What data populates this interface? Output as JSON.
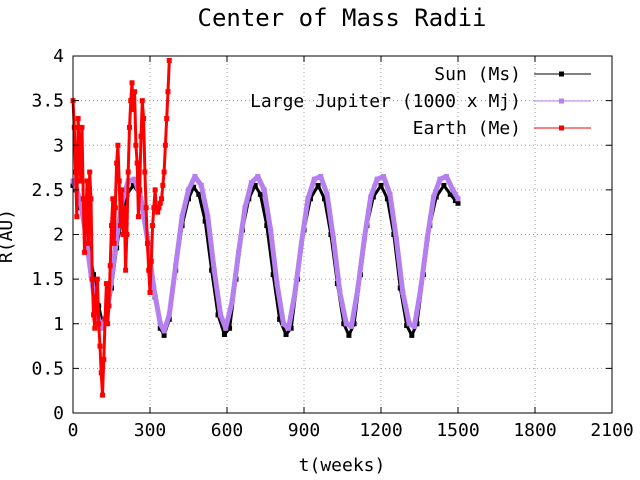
{
  "chart_data": {
    "type": "scatter",
    "title": "Center of Mass Radii",
    "xlabel": "t(weeks)",
    "ylabel": "R(AU)",
    "xlim": [
      0,
      2100
    ],
    "ylim": [
      0,
      4
    ],
    "xticks": [
      0,
      300,
      600,
      900,
      1200,
      1500,
      1800,
      2100
    ],
    "yticks": [
      "0",
      "0.5",
      "1",
      "1.5",
      "2",
      "2.5",
      "3",
      "3.5",
      "4"
    ],
    "grid": true,
    "legend_position": "top-right",
    "series": [
      {
        "name": "Sun (Ms)",
        "color": "#000000",
        "marker": "square",
        "points": [
          [
            0,
            2.55
          ],
          [
            10,
            2.5
          ],
          [
            20,
            2.4
          ],
          [
            30,
            2.3
          ],
          [
            45,
            2.15
          ],
          [
            60,
            1.9
          ],
          [
            80,
            1.55
          ],
          [
            100,
            1.2
          ],
          [
            115,
            1.0
          ],
          [
            130,
            1.05
          ],
          [
            150,
            1.4
          ],
          [
            170,
            1.85
          ],
          [
            190,
            2.2
          ],
          [
            210,
            2.45
          ],
          [
            235,
            2.55
          ],
          [
            260,
            2.45
          ],
          [
            280,
            2.2
          ],
          [
            300,
            1.8
          ],
          [
            320,
            1.3
          ],
          [
            340,
            0.95
          ],
          [
            355,
            0.87
          ],
          [
            375,
            1.05
          ],
          [
            400,
            1.6
          ],
          [
            425,
            2.1
          ],
          [
            450,
            2.4
          ],
          [
            470,
            2.53
          ],
          [
            490,
            2.45
          ],
          [
            515,
            2.15
          ],
          [
            540,
            1.6
          ],
          [
            565,
            1.1
          ],
          [
            590,
            0.88
          ],
          [
            610,
            0.95
          ],
          [
            635,
            1.5
          ],
          [
            660,
            2.05
          ],
          [
            685,
            2.4
          ],
          [
            710,
            2.55
          ],
          [
            730,
            2.45
          ],
          [
            755,
            2.1
          ],
          [
            780,
            1.55
          ],
          [
            805,
            1.05
          ],
          [
            830,
            0.88
          ],
          [
            850,
            0.95
          ],
          [
            875,
            1.5
          ],
          [
            900,
            2.05
          ],
          [
            925,
            2.4
          ],
          [
            955,
            2.55
          ],
          [
            980,
            2.4
          ],
          [
            1005,
            2.0
          ],
          [
            1030,
            1.45
          ],
          [
            1055,
            1.0
          ],
          [
            1075,
            0.87
          ],
          [
            1095,
            1.0
          ],
          [
            1120,
            1.55
          ],
          [
            1145,
            2.1
          ],
          [
            1170,
            2.42
          ],
          [
            1200,
            2.55
          ],
          [
            1225,
            2.4
          ],
          [
            1250,
            2.0
          ],
          [
            1275,
            1.4
          ],
          [
            1300,
            0.98
          ],
          [
            1320,
            0.87
          ],
          [
            1340,
            1.0
          ],
          [
            1365,
            1.55
          ],
          [
            1390,
            2.1
          ],
          [
            1415,
            2.42
          ],
          [
            1445,
            2.55
          ],
          [
            1470,
            2.45
          ],
          [
            1490,
            2.38
          ],
          [
            1500,
            2.35
          ]
        ]
      },
      {
        "name": "Large Jupiter (1000 x Mj)",
        "color": "#b57ff0",
        "marker": "square",
        "points": [
          [
            0,
            2.6
          ],
          [
            15,
            2.5
          ],
          [
            30,
            2.35
          ],
          [
            50,
            2.0
          ],
          [
            70,
            1.55
          ],
          [
            90,
            1.15
          ],
          [
            110,
            0.95
          ],
          [
            130,
            1.1
          ],
          [
            150,
            1.5
          ],
          [
            170,
            1.95
          ],
          [
            190,
            2.35
          ],
          [
            215,
            2.6
          ],
          [
            240,
            2.62
          ],
          [
            265,
            2.4
          ],
          [
            290,
            1.95
          ],
          [
            315,
            1.4
          ],
          [
            340,
            1.0
          ],
          [
            355,
            0.92
          ],
          [
            375,
            1.1
          ],
          [
            400,
            1.65
          ],
          [
            425,
            2.2
          ],
          [
            450,
            2.5
          ],
          [
            475,
            2.65
          ],
          [
            500,
            2.55
          ],
          [
            525,
            2.2
          ],
          [
            550,
            1.6
          ],
          [
            575,
            1.1
          ],
          [
            595,
            0.95
          ],
          [
            620,
            1.25
          ],
          [
            645,
            1.8
          ],
          [
            670,
            2.3
          ],
          [
            695,
            2.58
          ],
          [
            720,
            2.65
          ],
          [
            745,
            2.5
          ],
          [
            770,
            2.05
          ],
          [
            795,
            1.45
          ],
          [
            820,
            1.0
          ],
          [
            840,
            0.95
          ],
          [
            865,
            1.35
          ],
          [
            890,
            1.9
          ],
          [
            915,
            2.4
          ],
          [
            940,
            2.62
          ],
          [
            965,
            2.65
          ],
          [
            990,
            2.45
          ],
          [
            1015,
            1.95
          ],
          [
            1040,
            1.35
          ],
          [
            1065,
            1.0
          ],
          [
            1085,
            0.97
          ],
          [
            1110,
            1.4
          ],
          [
            1135,
            1.95
          ],
          [
            1160,
            2.42
          ],
          [
            1185,
            2.62
          ],
          [
            1210,
            2.65
          ],
          [
            1235,
            2.45
          ],
          [
            1260,
            1.95
          ],
          [
            1285,
            1.35
          ],
          [
            1310,
            1.0
          ],
          [
            1330,
            0.97
          ],
          [
            1355,
            1.4
          ],
          [
            1380,
            1.95
          ],
          [
            1405,
            2.42
          ],
          [
            1430,
            2.62
          ],
          [
            1455,
            2.65
          ],
          [
            1480,
            2.5
          ],
          [
            1500,
            2.4
          ]
        ]
      },
      {
        "name": "Earth (Me)",
        "color": "#ff0000",
        "marker": "square",
        "points": [
          [
            0,
            3.5
          ],
          [
            5,
            3.2
          ],
          [
            10,
            2.7
          ],
          [
            15,
            2.2
          ],
          [
            20,
            3.3
          ],
          [
            25,
            3.0
          ],
          [
            30,
            2.6
          ],
          [
            35,
            3.2
          ],
          [
            40,
            2.4
          ],
          [
            45,
            1.8
          ],
          [
            50,
            2.2
          ],
          [
            55,
            2.6
          ],
          [
            60,
            1.9
          ],
          [
            65,
            2.7
          ],
          [
            70,
            2.4
          ],
          [
            75,
            1.5
          ],
          [
            80,
            1.1
          ],
          [
            85,
            0.95
          ],
          [
            90,
            1.3
          ],
          [
            95,
            1.5
          ],
          [
            100,
            1.0
          ],
          [
            105,
            0.75
          ],
          [
            110,
            0.45
          ],
          [
            115,
            0.2
          ],
          [
            120,
            0.6
          ],
          [
            125,
            1.05
          ],
          [
            130,
            1.45
          ],
          [
            135,
            1.0
          ],
          [
            140,
            1.2
          ],
          [
            145,
            1.65
          ],
          [
            150,
            2.1
          ],
          [
            155,
            2.4
          ],
          [
            160,
            1.9
          ],
          [
            165,
            2.3
          ],
          [
            170,
            2.8
          ],
          [
            175,
            3.0
          ],
          [
            180,
            2.6
          ],
          [
            185,
            2.1
          ],
          [
            190,
            2.5
          ],
          [
            195,
            2.0
          ],
          [
            200,
            2.3
          ],
          [
            205,
            1.6
          ],
          [
            210,
            2.0
          ],
          [
            215,
            2.7
          ],
          [
            220,
            3.2
          ],
          [
            225,
            3.5
          ],
          [
            230,
            3.7
          ],
          [
            235,
            3.4
          ],
          [
            240,
            3.6
          ],
          [
            245,
            3.0
          ],
          [
            250,
            2.8
          ],
          [
            255,
            2.2
          ],
          [
            260,
            2.5
          ],
          [
            265,
            3.1
          ],
          [
            270,
            3.5
          ],
          [
            275,
            3.3
          ],
          [
            280,
            2.7
          ],
          [
            285,
            2.3
          ],
          [
            290,
            1.9
          ],
          [
            295,
            1.6
          ],
          [
            300,
            1.35
          ],
          [
            305,
            1.7
          ],
          [
            310,
            2.1
          ],
          [
            315,
            2.3
          ],
          [
            320,
            2.5
          ],
          [
            325,
            2.3
          ],
          [
            330,
            2.25
          ],
          [
            335,
            2.3
          ],
          [
            340,
            2.35
          ],
          [
            345,
            2.4
          ],
          [
            350,
            2.55
          ],
          [
            355,
            2.7
          ],
          [
            360,
            3.0
          ],
          [
            365,
            3.3
          ],
          [
            370,
            3.6
          ],
          [
            375,
            3.95
          ]
        ]
      }
    ]
  }
}
